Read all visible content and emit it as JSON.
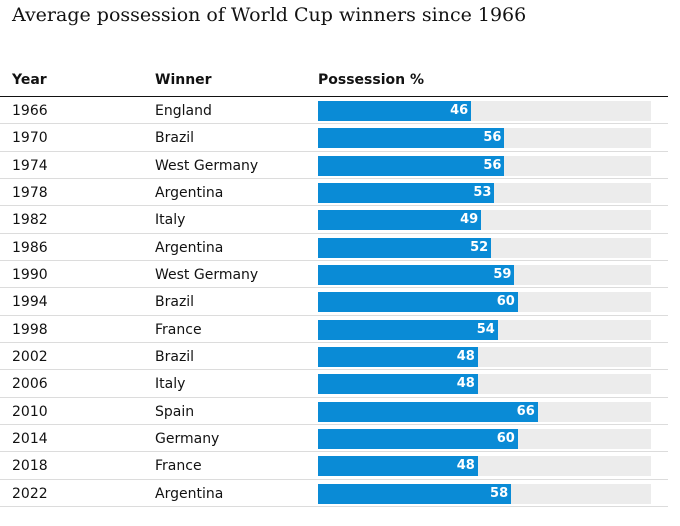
{
  "title": "Average possession of World Cup winners since 1966",
  "columns": {
    "year": "Year",
    "winner": "Winner",
    "possession": "Possession %"
  },
  "colors": {
    "bar": "#0a8bd6",
    "track": "#ececec"
  },
  "chart_data": {
    "type": "bar",
    "title": "Average possession of World Cup winners since 1966",
    "xlabel": "",
    "ylabel": "Possession %",
    "xlim": [
      0,
      100
    ],
    "categories": [
      "1966",
      "1970",
      "1974",
      "1978",
      "1982",
      "1986",
      "1990",
      "1994",
      "1998",
      "2002",
      "2006",
      "2010",
      "2014",
      "2018",
      "2022"
    ],
    "winners": [
      "England",
      "Brazil",
      "West Germany",
      "Argentina",
      "Italy",
      "Argentina",
      "West Germany",
      "Brazil",
      "France",
      "Brazil",
      "Italy",
      "Spain",
      "Germany",
      "France",
      "Argentina"
    ],
    "values": [
      46,
      56,
      56,
      53,
      49,
      52,
      59,
      60,
      54,
      48,
      48,
      66,
      60,
      48,
      58
    ]
  }
}
